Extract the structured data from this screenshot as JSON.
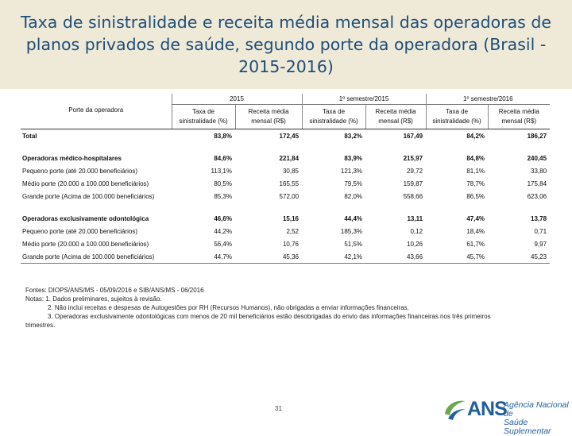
{
  "slide": {
    "title": "Taxa de sinistralidade e receita média mensal das operadoras de planos privados de saúde, segundo porte da operadora (Brasil - 2015-2016)",
    "page_number": "31"
  },
  "table": {
    "porte_header": "Porte da operadora",
    "periods": [
      "2015",
      "1º semestre/2015",
      "1º semestre/2016"
    ],
    "col_labels": [
      "Taxa de sinistralidade (%)",
      "Receita média mensal (R$)"
    ],
    "rows": [
      {
        "label": "Total",
        "bold": true,
        "values": [
          "83,8%",
          "172,45",
          "83,2%",
          "167,49",
          "84,2%",
          "186,27"
        ]
      },
      {
        "label": "Operadoras médico-hospitalares",
        "bold": true,
        "values": [
          "84,6%",
          "221,84",
          "83,9%",
          "215,97",
          "84,8%",
          "240,45"
        ]
      },
      {
        "label": "Pequeno porte (até 20.000 beneficiários)",
        "bold": false,
        "values": [
          "113,1%",
          "30,85",
          "121,3%",
          "29,72",
          "81,1%",
          "33,80"
        ]
      },
      {
        "label": "Médio porte (20.000 a 100.000 beneficiários)",
        "bold": false,
        "values": [
          "80,5%",
          "165,55",
          "79,5%",
          "159,87",
          "78,7%",
          "175,84"
        ]
      },
      {
        "label": "Grande porte (Acima de 100.000 beneficiários)",
        "bold": false,
        "values": [
          "85,3%",
          "572,00",
          "82,0%",
          "558,66",
          "86,5%",
          "623,06"
        ]
      },
      {
        "label": "Operadoras exclusivamente odontológica",
        "bold": true,
        "values": [
          "46,6%",
          "15,16",
          "44,4%",
          "13,11",
          "47,4%",
          "13,78"
        ]
      },
      {
        "label": "Pequeno porte (até 20.000 beneficiários)",
        "bold": false,
        "values": [
          "44,2%",
          "2,52",
          "185,3%",
          "0,12",
          "18,4%",
          "0,71"
        ]
      },
      {
        "label": "Médio porte (20.000 a 100.000 beneficiários)",
        "bold": false,
        "values": [
          "56,4%",
          "10,76",
          "51,5%",
          "10,26",
          "61,7%",
          "9,97"
        ]
      },
      {
        "label": "Grande porte (Acima de 100.000 beneficiários)",
        "bold": false,
        "values": [
          "44,7%",
          "45,36",
          "42,1%",
          "43,66",
          "45,7%",
          "45,23"
        ]
      }
    ]
  },
  "notes": {
    "fontes": "Fontes: DIOPS/ANS/MS - 05/09/2016 e SIB/ANS/MS - 06/2016",
    "notas": "Notas: 1. Dados preliminares, sujeitos à revisão.",
    "nota2": "2. Não inclui receitas e despesas de Autogestões por RH (Recursos Humanos), não obrigadas a enviar informações financeiras.",
    "nota3": "3. Operadoras exclusivamente odontológicas com menos de 20 mil beneficiários estão desobrigadas do envio das informações financeiras nos três primeiros",
    "nota3_cont": "trimestres."
  },
  "logo": {
    "brand": "ANS",
    "line1": "Agência Nacional de",
    "line2": "Saúde Suplementar",
    "colors": {
      "blue": "#1f5f9e",
      "green": "#6aa84f"
    }
  }
}
